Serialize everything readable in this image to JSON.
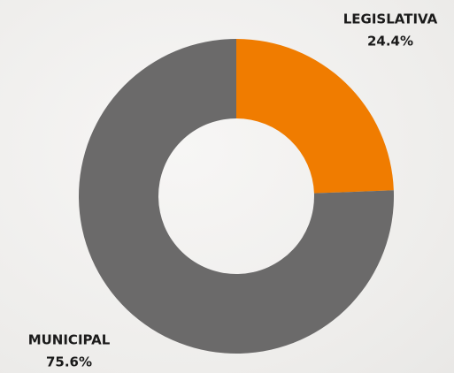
{
  "chart_data": {
    "type": "donut",
    "categories": [
      "LEGISLATIVA",
      "MUNICIPAL"
    ],
    "values": [
      24.4,
      75.6
    ],
    "value_labels": [
      "24.4%",
      "75.6%"
    ],
    "colors": [
      "#f07c00",
      "#6b6a6a"
    ]
  }
}
